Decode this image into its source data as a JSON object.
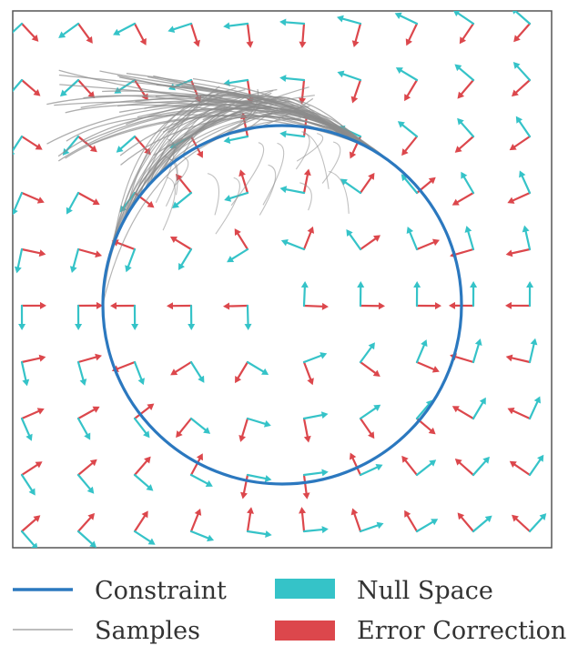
{
  "colors": {
    "constraint": "#2b78bf",
    "samples": "#8c8c8c",
    "null_space": "#35c3c8",
    "error_correction": "#dc474c",
    "frame": "#555555"
  },
  "legend": {
    "constraint": "Constraint",
    "samples": "Samples",
    "null_space": "Null Space",
    "error_correction": "Error Correction"
  }
}
